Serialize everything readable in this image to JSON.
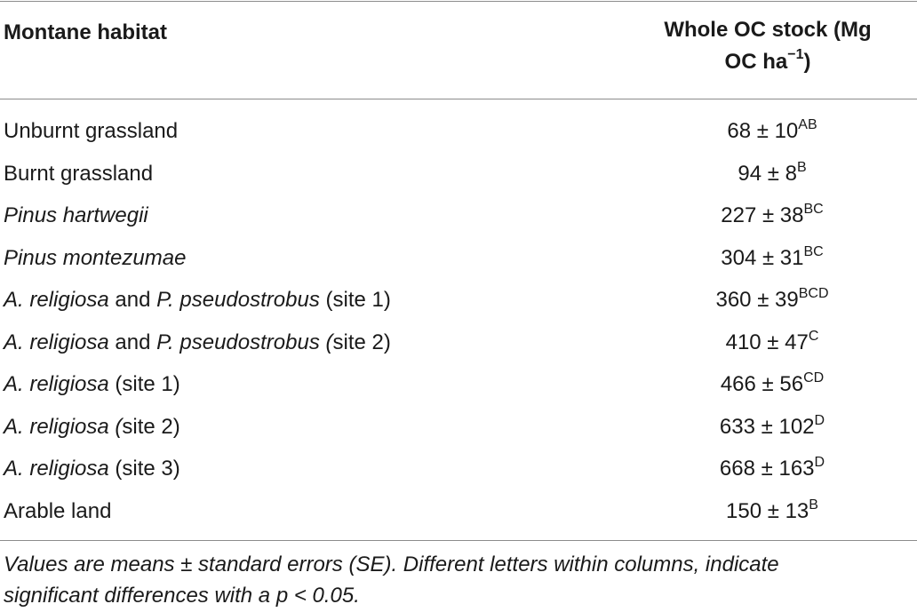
{
  "header": {
    "habitat_label": "Montane habitat",
    "stock_label_line1": "Whole OC stock (Mg",
    "stock_label_line2": "OC ha",
    "stock_label_sup": "−1",
    "stock_label_end": ")"
  },
  "rows": [
    {
      "habitat": [
        {
          "text": "Unburnt grassland",
          "italic": false
        }
      ],
      "value": "68 ± 10",
      "letters": "AB"
    },
    {
      "habitat": [
        {
          "text": "Burnt grassland",
          "italic": false
        }
      ],
      "value": "94 ± 8",
      "letters": "B"
    },
    {
      "habitat": [
        {
          "text": "Pinus hartwegii",
          "italic": true
        }
      ],
      "value": "227 ± 38",
      "letters": "BC"
    },
    {
      "habitat": [
        {
          "text": "Pinus montezumae",
          "italic": true
        }
      ],
      "value": "304 ± 31",
      "letters": "BC"
    },
    {
      "habitat": [
        {
          "text": "A. religiosa",
          "italic": true
        },
        {
          "text": " and ",
          "italic": false
        },
        {
          "text": "P. pseudostrobus",
          "italic": true
        },
        {
          "text": " (site 1)",
          "italic": false
        }
      ],
      "value": "360 ± 39",
      "letters": "BCD"
    },
    {
      "habitat": [
        {
          "text": "A. religiosa",
          "italic": true
        },
        {
          "text": " and ",
          "italic": false
        },
        {
          "text": "P. pseudostrobus (",
          "italic": true
        },
        {
          "text": "site 2)",
          "italic": false
        }
      ],
      "value": "410 ± 47",
      "letters": "C"
    },
    {
      "habitat": [
        {
          "text": "A. religiosa",
          "italic": true
        },
        {
          "text": " (site 1)",
          "italic": false
        }
      ],
      "value": "466 ± 56",
      "letters": "CD"
    },
    {
      "habitat": [
        {
          "text": "A. religiosa (",
          "italic": true
        },
        {
          "text": "site 2)",
          "italic": false
        }
      ],
      "value": "633 ± 102",
      "letters": "D"
    },
    {
      "habitat": [
        {
          "text": "A. religiosa",
          "italic": true
        },
        {
          "text": " (site 3)",
          "italic": false
        }
      ],
      "value": "668 ± 163",
      "letters": "D"
    },
    {
      "habitat": [
        {
          "text": "Arable land",
          "italic": false
        }
      ],
      "value": "150 ± 13",
      "letters": "B"
    }
  ],
  "footnote": {
    "line1": "Values are means ± standard errors (SE). Different letters within columns, indicate",
    "line2": "significant differences with a p < 0.05."
  }
}
